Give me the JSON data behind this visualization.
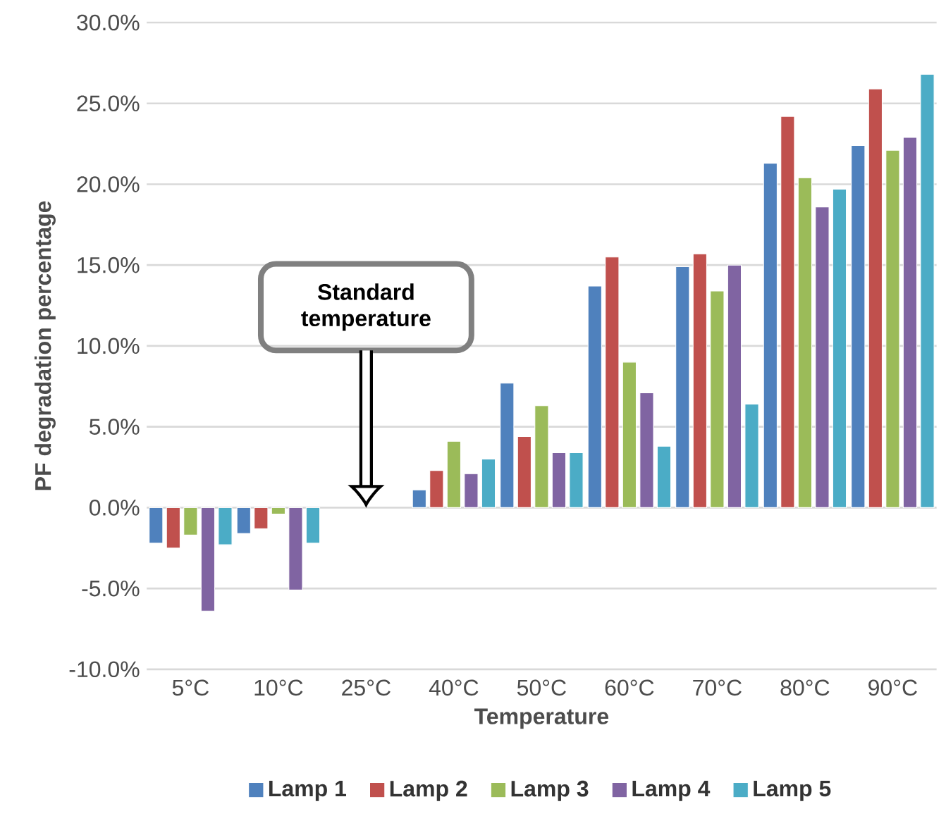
{
  "chart_data": {
    "type": "bar",
    "xlabel": "Temperature",
    "ylabel": "PF degradation percentage",
    "categories": [
      "5°C",
      "10°C",
      "25°C",
      "40°C",
      "50°C",
      "60°C",
      "70°C",
      "80°C",
      "90°C"
    ],
    "series": [
      {
        "name": "Lamp 1",
        "color": "#4f81bd",
        "values": [
          -2.2,
          -1.6,
          null,
          1.1,
          7.7,
          13.7,
          14.9,
          21.3,
          22.4
        ]
      },
      {
        "name": "Lamp 2",
        "color": "#c0504d",
        "values": [
          -2.5,
          -1.3,
          null,
          2.3,
          4.4,
          15.5,
          15.7,
          24.2,
          25.9
        ]
      },
      {
        "name": "Lamp 3",
        "color": "#9bbb59",
        "values": [
          -1.7,
          -0.4,
          null,
          4.1,
          6.3,
          9.0,
          13.4,
          20.4,
          22.1
        ]
      },
      {
        "name": "Lamp 4",
        "color": "#8064a2",
        "values": [
          -6.4,
          -5.1,
          null,
          2.1,
          3.4,
          7.1,
          15.0,
          18.6,
          22.9
        ]
      },
      {
        "name": "Lamp 5",
        "color": "#4bacc6",
        "values": [
          -2.3,
          -2.2,
          null,
          3.0,
          3.4,
          3.8,
          6.4,
          19.7,
          26.8
        ]
      }
    ],
    "ylim": [
      -10,
      30
    ],
    "yticks": [
      {
        "value": -10,
        "label": "-10.0%"
      },
      {
        "value": -5,
        "label": "-5.0%"
      },
      {
        "value": 0,
        "label": "0.0%"
      },
      {
        "value": 5,
        "label": "5.0%"
      },
      {
        "value": 10,
        "label": "10.0%"
      },
      {
        "value": 15,
        "label": "15.0%"
      },
      {
        "value": 20,
        "label": "20.0%"
      },
      {
        "value": 25,
        "label": "25.0%"
      },
      {
        "value": 30,
        "label": "30.0%"
      }
    ],
    "grid": "y",
    "legend": "bottom",
    "annotations": [
      "Standard temperature"
    ]
  }
}
